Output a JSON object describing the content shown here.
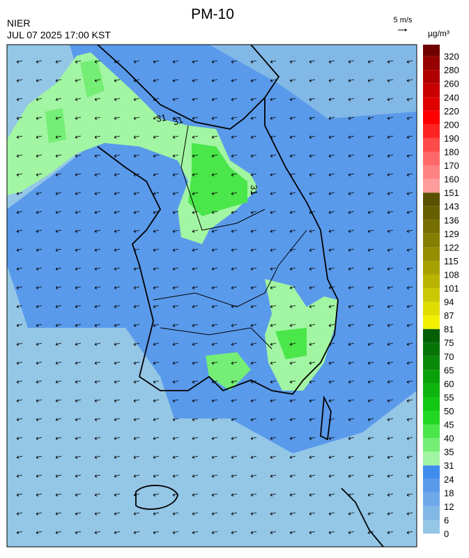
{
  "header": {
    "title": "PM-10",
    "source": "NIER",
    "timestamp": "JUL 07 2025 17:00 KST",
    "wind_scale": "5 m/s",
    "unit": "µg/m³"
  },
  "contour_labels": [
    "31",
    "31",
    "31"
  ],
  "colorbar": {
    "ticks": [
      0,
      6,
      12,
      18,
      24,
      31,
      35,
      40,
      45,
      50,
      55,
      60,
      65,
      70,
      75,
      81,
      87,
      94,
      101,
      108,
      115,
      122,
      129,
      136,
      143,
      151,
      160,
      170,
      180,
      190,
      200,
      220,
      240,
      260,
      280,
      320
    ],
    "colors": [
      "#94c6e6",
      "#82b8e6",
      "#6fa8e8",
      "#5a9aeb",
      "#3f8cee",
      "#a2f5a2",
      "#75ee75",
      "#4ae64a",
      "#22d822",
      "#12c812",
      "#0db40d",
      "#0aa00a",
      "#088a08",
      "#067406",
      "#055f05",
      "#f2f000",
      "#dedc00",
      "#cac800",
      "#b8b400",
      "#a6a000",
      "#968e00",
      "#867e00",
      "#766e00",
      "#685f00",
      "#5a5200",
      "#ff9c9c",
      "#ff8282",
      "#ff6868",
      "#ff4a4a",
      "#ff2424",
      "#ff0000",
      "#e00000",
      "#c80000",
      "#b00000",
      "#960000",
      "#700000"
    ]
  }
}
